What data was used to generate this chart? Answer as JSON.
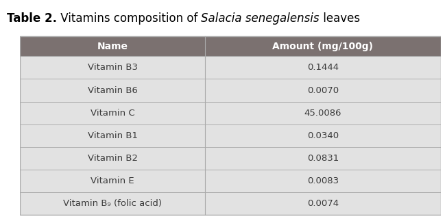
{
  "title_bold": "Table 2.",
  "title_normal": " Vitamins composition of ",
  "title_italic": "Salacia senegalensis",
  "title_end": " leaves",
  "header": [
    "Name",
    "Amount (mg/100g)"
  ],
  "rows": [
    [
      "Vitamin B3",
      "0.1444"
    ],
    [
      "Vitamin B6",
      "0.0070"
    ],
    [
      "Vitamin C",
      "45.0086"
    ],
    [
      "Vitamin B1",
      "0.0340"
    ],
    [
      "Vitamin B2",
      "0.0831"
    ],
    [
      "Vitamin E",
      "0.0083"
    ],
    [
      "Vitamin B₉ (folic acid)",
      "0.0074"
    ]
  ],
  "header_bg": "#7B7170",
  "header_text_color": "#FFFFFF",
  "row_bg": "#E2E2E2",
  "cell_text_color": "#3A3A3A",
  "border_color": "#AAAAAA",
  "title_color": "#000000",
  "fig_bg": "#FFFFFF",
  "header_fontsize": 10,
  "cell_fontsize": 9.5,
  "title_fontsize": 12
}
